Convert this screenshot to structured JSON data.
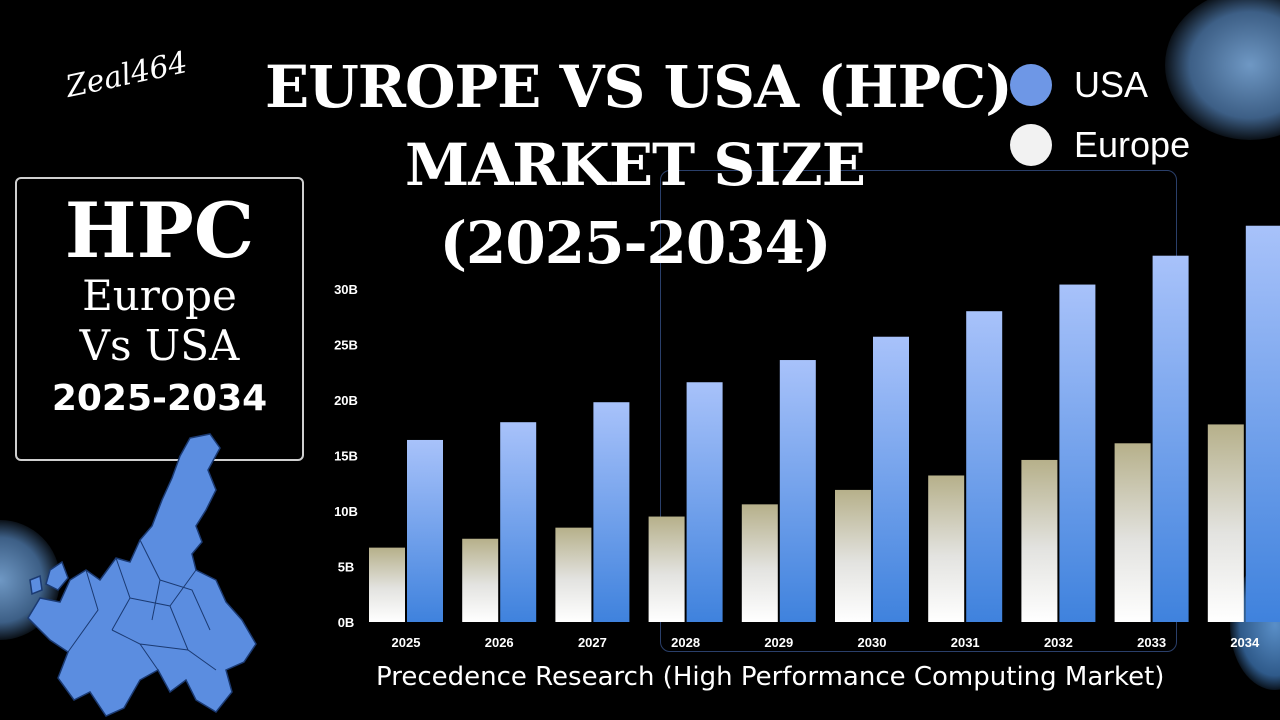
{
  "brand": {
    "signature": "Zeal464"
  },
  "title_lines": [
    "EUROPE VS USA (HPC)",
    "MARKET  SIZE",
    "(2025-2034)"
  ],
  "info_box": {
    "heading": "HPC",
    "line1": "Europe",
    "line2": "Vs USA",
    "years": "2025-2034"
  },
  "source": "Precedence Research (High Performance Computing Market)",
  "colors": {
    "usa": "#6e97e6",
    "europe": "#f2f2f2",
    "map": "#5b8de0",
    "background": "#000000"
  },
  "chart_data": {
    "type": "bar",
    "categories": [
      "2025",
      "2026",
      "2027",
      "2028",
      "2029",
      "2030",
      "2031",
      "2032",
      "2033",
      "2034"
    ],
    "series": [
      {
        "name": "Europe",
        "values": [
          6.7,
          7.5,
          8.5,
          9.5,
          10.6,
          11.9,
          13.2,
          14.6,
          16.1,
          17.8
        ]
      },
      {
        "name": "USA",
        "values": [
          16.4,
          18.0,
          19.8,
          21.6,
          23.6,
          25.7,
          28.0,
          30.4,
          33.0,
          35.7
        ]
      }
    ],
    "y_ticks": [
      "0B",
      "5B",
      "10B",
      "15B",
      "20B",
      "25B",
      "30B"
    ],
    "y_tick_values": [
      0,
      5,
      10,
      15,
      20,
      25,
      30
    ],
    "ylim": [
      0,
      36
    ],
    "legend": {
      "position": "top-right",
      "labels": [
        "USA",
        "Europe"
      ]
    },
    "grid": false
  }
}
